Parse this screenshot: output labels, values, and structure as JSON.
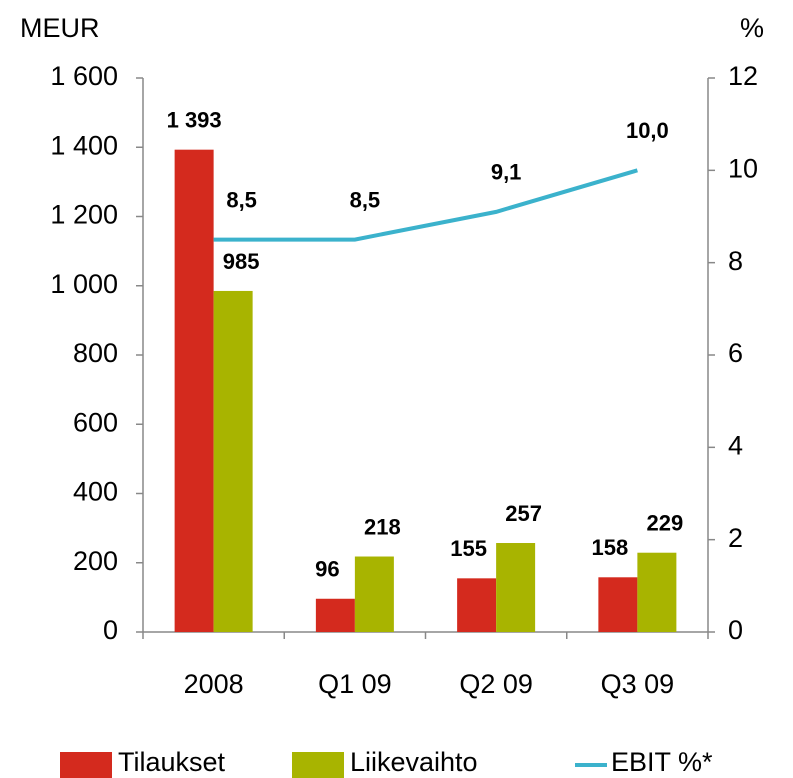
{
  "chart_data": {
    "type": "bar",
    "y_label": "MEUR",
    "y2_label": "%",
    "categories": [
      "2008",
      "Q1 09",
      "Q2 09",
      "Q3 09"
    ],
    "series": [
      {
        "name": "Tilaukset",
        "color": "#d42a1e",
        "values": [
          1393,
          96,
          155,
          158
        ],
        "value_labels": [
          "1 393",
          "96",
          "155",
          "158"
        ]
      },
      {
        "name": "Liikevaihto",
        "color": "#a8b400",
        "values": [
          985,
          218,
          257,
          229
        ]
      },
      {
        "name": "EBIT %*",
        "type": "line",
        "axis": "y2",
        "color": "#3bb2cc",
        "values": [
          8.5,
          8.5,
          9.1,
          10.0
        ],
        "value_labels": [
          "8,5",
          "8,5",
          "9,1",
          "10,0"
        ]
      }
    ],
    "ylim": [
      0,
      1600
    ],
    "yticks": [
      0,
      200,
      400,
      600,
      800,
      {
        "value": 1000,
        "label": "1 000"
      },
      {
        "value": 1200,
        "label": "1 200"
      },
      {
        "value": 1400,
        "label": "1 400"
      },
      {
        "value": 1600,
        "label": "1 600"
      }
    ],
    "y2lim": [
      0,
      12
    ],
    "y2ticks": [
      0,
      2,
      4,
      6,
      8,
      10,
      12
    ],
    "legend": "bottom"
  }
}
